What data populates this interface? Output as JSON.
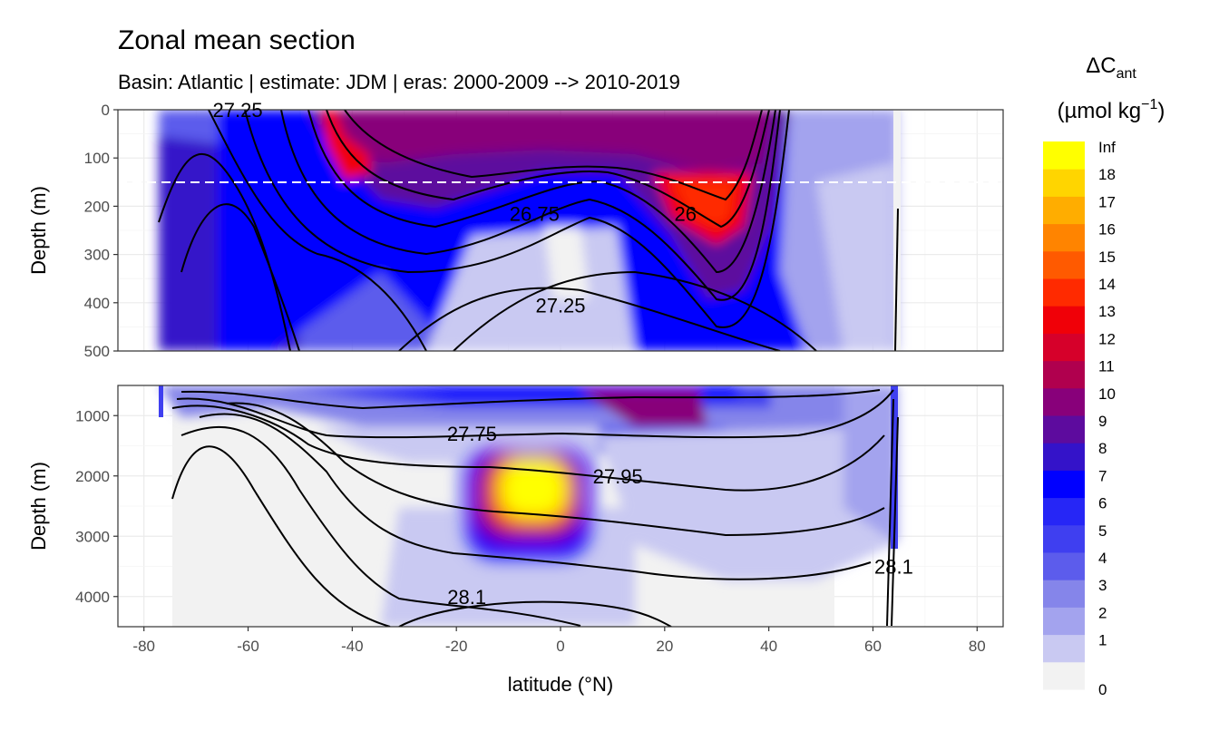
{
  "chart_data": {
    "type": "heatmap",
    "title": "Zonal mean section",
    "subtitle": "Basin: Atlantic | estimate: JDM  | eras: 2000-2009 --> 2010-2019",
    "xlabel": "latitude (°N)",
    "ylabel": "Depth (m)",
    "xlim": [
      -85,
      85
    ],
    "x_ticks": [
      "-80",
      "-60",
      "-40",
      "-20",
      "0",
      "20",
      "40",
      "60",
      "80"
    ],
    "panels": [
      {
        "name": "upper",
        "ylim": [
          0,
          500
        ],
        "y_ticks": [
          "0",
          "100",
          "200",
          "300",
          "400",
          "500"
        ],
        "reference_depth": 150
      },
      {
        "name": "lower",
        "ylim": [
          500,
          4500
        ],
        "y_ticks": [
          "1000",
          "2000",
          "3000",
          "4000"
        ]
      }
    ],
    "contour_labels": [
      {
        "text": "27.25",
        "lat": -62,
        "depth": 0,
        "panel": "upper"
      },
      {
        "text": "26.75",
        "lat": -5,
        "depth": 215,
        "panel": "upper"
      },
      {
        "text": "26",
        "lat": 24,
        "depth": 215,
        "panel": "upper"
      },
      {
        "text": "27.25",
        "lat": 0,
        "depth": 405,
        "panel": "upper"
      },
      {
        "text": "27.75",
        "lat": -17,
        "depth": 1300,
        "panel": "lower"
      },
      {
        "text": "27.95",
        "lat": 11,
        "depth": 2000,
        "panel": "lower"
      },
      {
        "text": "28.1",
        "lat": -18,
        "depth": 4000,
        "panel": "lower"
      },
      {
        "text": "28.1",
        "lat": 64,
        "depth": 3500,
        "panel": "lower"
      }
    ],
    "legend": {
      "title": "ΔC",
      "title_sub": "ant",
      "unit": "(µmol kg",
      "unit_sup": "−1",
      "unit_close": ")",
      "bins": [
        {
          "label": "0",
          "color": "#f2f2f2"
        },
        {
          "label": "1",
          "color": "#c9c9f2"
        },
        {
          "label": "2",
          "color": "#a3a3ee"
        },
        {
          "label": "3",
          "color": "#8585ea"
        },
        {
          "label": "4",
          "color": "#5c5cec"
        },
        {
          "label": "5",
          "color": "#3f3ff0"
        },
        {
          "label": "6",
          "color": "#2626f6"
        },
        {
          "label": "7",
          "color": "#0000ff"
        },
        {
          "label": "8",
          "color": "#3413c9"
        },
        {
          "label": "9",
          "color": "#5d0b9e"
        },
        {
          "label": "10",
          "color": "#88007a"
        },
        {
          "label": "11",
          "color": "#b0004e"
        },
        {
          "label": "12",
          "color": "#d6002a"
        },
        {
          "label": "13",
          "color": "#f00008"
        },
        {
          "label": "14",
          "color": "#ff2a00"
        },
        {
          "label": "15",
          "color": "#ff5a00"
        },
        {
          "label": "16",
          "color": "#ff8400"
        },
        {
          "label": "17",
          "color": "#ffad00"
        },
        {
          "label": "18",
          "color": "#ffd500"
        },
        {
          "label": "Inf",
          "color": "#ffff00"
        }
      ]
    }
  }
}
